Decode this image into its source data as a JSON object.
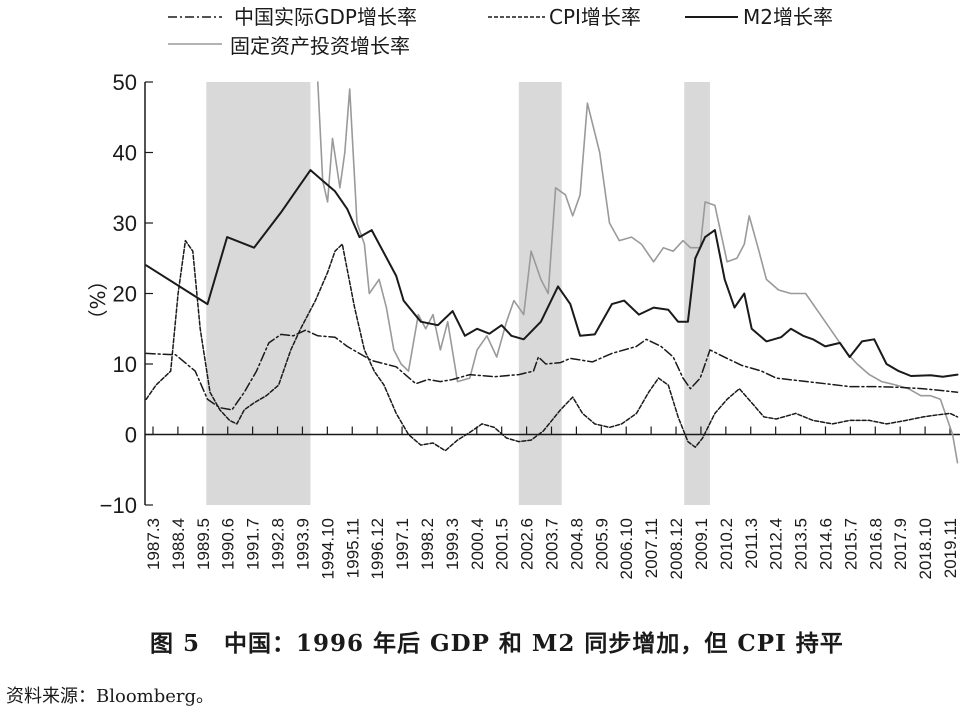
{
  "caption": "图 5　中国：1996 年后 GDP 和 M2 同步增加，但 CPI 持平",
  "source": "资料来源：Bloomberg。",
  "chart_data": {
    "type": "line",
    "title": "",
    "ylabel": "（%）",
    "ylim": [
      -10,
      50
    ],
    "yticks": [
      -10,
      0,
      10,
      20,
      30,
      40,
      50
    ],
    "xlim": [
      1987.25,
      2020.5
    ],
    "grid": false,
    "legend": "top",
    "recession_shading": [
      [
        1989.75,
        1994.0
      ],
      [
        2002.5,
        2004.25
      ],
      [
        2009.25,
        2010.3
      ]
    ],
    "xtick_labels": [
      "1987.3",
      "1988.4",
      "1989.5",
      "1990.6",
      "1991.7",
      "1992.8",
      "1993.9",
      "1994.10",
      "1995.11",
      "1996.12",
      "1997.1",
      "1998.2",
      "1999.3",
      "2000.4",
      "2001.5",
      "2002.6",
      "2003.7",
      "2004.8",
      "2005.9",
      "2006.10",
      "2007.11",
      "2008.12",
      "2009.1",
      "2010.2",
      "2011.3",
      "2012.4",
      "2013.5",
      "2014.6",
      "2015.7",
      "2016.8",
      "2017.9",
      "2018.10",
      "2019.11"
    ],
    "series": [
      {
        "name": "中国实际GDP增长率",
        "style": "dashdot",
        "color": "#1a1a1a",
        "points": [
          [
            1987.3,
            11.5
          ],
          [
            1988.5,
            11.3
          ],
          [
            1989.3,
            9
          ],
          [
            1989.8,
            5
          ],
          [
            1990.3,
            3.8
          ],
          [
            1990.8,
            3.5
          ],
          [
            1991.3,
            6
          ],
          [
            1991.8,
            9
          ],
          [
            1992.3,
            13
          ],
          [
            1992.8,
            14.2
          ],
          [
            1993.3,
            14
          ],
          [
            1993.8,
            14.8
          ],
          [
            1994.3,
            14
          ],
          [
            1995,
            13.8
          ],
          [
            1995.5,
            12.5
          ],
          [
            1996.5,
            10.5
          ],
          [
            1997.5,
            9.6
          ],
          [
            1998.3,
            7.2
          ],
          [
            1998.8,
            7.8
          ],
          [
            1999.3,
            7.5
          ],
          [
            1999.8,
            7.8
          ],
          [
            2000.5,
            8.5
          ],
          [
            2001.5,
            8.2
          ],
          [
            2002.5,
            8.5
          ],
          [
            2003.1,
            9
          ],
          [
            2003.3,
            11
          ],
          [
            2003.6,
            10
          ],
          [
            2004.2,
            10.2
          ],
          [
            2004.6,
            10.8
          ],
          [
            2005.5,
            10.3
          ],
          [
            2006.3,
            11.5
          ],
          [
            2007.3,
            12.5
          ],
          [
            2007.7,
            13.5
          ],
          [
            2008.3,
            12.5
          ],
          [
            2008.8,
            11
          ],
          [
            2009.2,
            8
          ],
          [
            2009.5,
            6.5
          ],
          [
            2009.9,
            8
          ],
          [
            2010.3,
            12
          ],
          [
            2011,
            10.8
          ],
          [
            2011.6,
            9.8
          ],
          [
            2012.4,
            9
          ],
          [
            2013,
            8
          ],
          [
            2014,
            7.6
          ],
          [
            2015,
            7.2
          ],
          [
            2016,
            6.8
          ],
          [
            2017,
            6.8
          ],
          [
            2018,
            6.7
          ],
          [
            2019,
            6.5
          ],
          [
            2020.4,
            6
          ]
        ]
      },
      {
        "name": "CPI增长率",
        "style": "dashed",
        "color": "#1a1a1a",
        "points": [
          [
            1987.3,
            5
          ],
          [
            1987.7,
            7
          ],
          [
            1988.3,
            9
          ],
          [
            1988.6,
            20
          ],
          [
            1988.9,
            27.5
          ],
          [
            1989.2,
            26
          ],
          [
            1989.5,
            15
          ],
          [
            1989.9,
            6
          ],
          [
            1990.3,
            3.5
          ],
          [
            1990.7,
            2
          ],
          [
            1991,
            1.5
          ],
          [
            1991.3,
            3.5
          ],
          [
            1991.7,
            4.5
          ],
          [
            1992.2,
            5.5
          ],
          [
            1992.7,
            7
          ],
          [
            1993.2,
            12
          ],
          [
            1993.6,
            15
          ],
          [
            1994.2,
            19
          ],
          [
            1994.7,
            23
          ],
          [
            1995,
            26
          ],
          [
            1995.3,
            27
          ],
          [
            1995.8,
            18
          ],
          [
            1996.2,
            12
          ],
          [
            1996.6,
            9
          ],
          [
            1997,
            7
          ],
          [
            1997.5,
            3
          ],
          [
            1998,
            0
          ],
          [
            1998.5,
            -1.5
          ],
          [
            1999,
            -1.2
          ],
          [
            1999.5,
            -2.3
          ],
          [
            2000,
            -0.8
          ],
          [
            2000.5,
            0.3
          ],
          [
            2001,
            1.5
          ],
          [
            2001.5,
            1
          ],
          [
            2002,
            -0.5
          ],
          [
            2002.5,
            -1
          ],
          [
            2003,
            -0.8
          ],
          [
            2003.5,
            0.5
          ],
          [
            2004.2,
            3.5
          ],
          [
            2004.7,
            5.3
          ],
          [
            2005.1,
            3
          ],
          [
            2005.6,
            1.5
          ],
          [
            2006.2,
            1
          ],
          [
            2006.7,
            1.5
          ],
          [
            2007.3,
            3
          ],
          [
            2007.8,
            6
          ],
          [
            2008.2,
            8
          ],
          [
            2008.6,
            7
          ],
          [
            2009,
            2.5
          ],
          [
            2009.4,
            -1
          ],
          [
            2009.7,
            -1.8
          ],
          [
            2010,
            -0.5
          ],
          [
            2010.5,
            3
          ],
          [
            2011,
            5
          ],
          [
            2011.5,
            6.5
          ],
          [
            2012,
            4.5
          ],
          [
            2012.5,
            2.5
          ],
          [
            2013,
            2.2
          ],
          [
            2013.8,
            3
          ],
          [
            2014.5,
            2
          ],
          [
            2015.3,
            1.5
          ],
          [
            2016,
            2
          ],
          [
            2016.8,
            2
          ],
          [
            2017.5,
            1.5
          ],
          [
            2018.3,
            2
          ],
          [
            2019,
            2.5
          ],
          [
            2019.6,
            2.8
          ],
          [
            2020.1,
            3
          ],
          [
            2020.4,
            2.5
          ]
        ]
      },
      {
        "name": "M2增长率",
        "style": "solid",
        "color": "#1a1a1a",
        "points": [
          [
            1987.3,
            24
          ],
          [
            1989.8,
            18.5
          ],
          [
            1990.6,
            28
          ],
          [
            1991.7,
            26.5
          ],
          [
            1992.8,
            31.5
          ],
          [
            1993.6,
            35.5
          ],
          [
            1994,
            37.5
          ],
          [
            1994.5,
            36
          ],
          [
            1995,
            34.5
          ],
          [
            1995.5,
            32
          ],
          [
            1996,
            28
          ],
          [
            1996.5,
            29
          ],
          [
            1997.5,
            22.5
          ],
          [
            1997.8,
            19
          ],
          [
            1998.5,
            16
          ],
          [
            1999.2,
            15.5
          ],
          [
            1999.8,
            17.5
          ],
          [
            2000.3,
            14
          ],
          [
            2000.8,
            15
          ],
          [
            2001.3,
            14.3
          ],
          [
            2001.8,
            15.5
          ],
          [
            2002.2,
            14
          ],
          [
            2002.7,
            13.5
          ],
          [
            2003.4,
            16
          ],
          [
            2004.1,
            21
          ],
          [
            2004.6,
            18.5
          ],
          [
            2005,
            14
          ],
          [
            2005.6,
            14.2
          ],
          [
            2006.3,
            18.5
          ],
          [
            2006.8,
            19
          ],
          [
            2007.4,
            17
          ],
          [
            2008,
            18
          ],
          [
            2008.6,
            17.7
          ],
          [
            2009,
            16
          ],
          [
            2009.4,
            16
          ],
          [
            2009.7,
            25
          ],
          [
            2010.1,
            28
          ],
          [
            2010.5,
            29
          ],
          [
            2010.9,
            22
          ],
          [
            2011.3,
            18
          ],
          [
            2011.7,
            20
          ],
          [
            2012,
            15
          ],
          [
            2012.6,
            13.2
          ],
          [
            2013.2,
            13.8
          ],
          [
            2013.6,
            15
          ],
          [
            2014.1,
            14
          ],
          [
            2014.5,
            13.5
          ],
          [
            2015,
            12.5
          ],
          [
            2015.6,
            13
          ],
          [
            2016,
            11
          ],
          [
            2016.5,
            13.2
          ],
          [
            2017,
            13.5
          ],
          [
            2017.5,
            10
          ],
          [
            2018,
            9
          ],
          [
            2018.5,
            8.3
          ],
          [
            2019.3,
            8.4
          ],
          [
            2019.8,
            8.2
          ],
          [
            2020.4,
            8.5
          ]
        ]
      },
      {
        "name": "固定资产投资增长率",
        "style": "solid-gray",
        "color": "#9a9a9a",
        "points": [
          [
            1994.3,
            50
          ],
          [
            1994.5,
            36
          ],
          [
            1994.7,
            33
          ],
          [
            1994.9,
            42
          ],
          [
            1995.2,
            35
          ],
          [
            1995.4,
            40
          ],
          [
            1995.6,
            49
          ],
          [
            1995.9,
            30
          ],
          [
            1996.2,
            27
          ],
          [
            1996.4,
            20
          ],
          [
            1996.8,
            22
          ],
          [
            1997.1,
            18
          ],
          [
            1997.4,
            12
          ],
          [
            1997.7,
            10
          ],
          [
            1998,
            9
          ],
          [
            1998.4,
            17
          ],
          [
            1998.7,
            15
          ],
          [
            1999,
            17
          ],
          [
            1999.3,
            12
          ],
          [
            1999.6,
            16
          ],
          [
            2000,
            7.5
          ],
          [
            2000.5,
            8
          ],
          [
            2000.8,
            12
          ],
          [
            2001.2,
            14
          ],
          [
            2001.6,
            11
          ],
          [
            2002,
            16
          ],
          [
            2002.3,
            19
          ],
          [
            2002.7,
            17
          ],
          [
            2003,
            26
          ],
          [
            2003.4,
            22
          ],
          [
            2003.7,
            20
          ],
          [
            2004,
            35
          ],
          [
            2004.4,
            34
          ],
          [
            2004.7,
            31
          ],
          [
            2005,
            34
          ],
          [
            2005.3,
            47
          ],
          [
            2005.8,
            40
          ],
          [
            2006.2,
            30
          ],
          [
            2006.6,
            27.5
          ],
          [
            2007.1,
            28
          ],
          [
            2007.5,
            27
          ],
          [
            2008,
            24.5
          ],
          [
            2008.4,
            26.5
          ],
          [
            2008.8,
            26
          ],
          [
            2009.2,
            27.5
          ],
          [
            2009.5,
            26.5
          ],
          [
            2009.9,
            26.5
          ],
          [
            2010.1,
            33
          ],
          [
            2010.5,
            32.5
          ],
          [
            2011,
            24.5
          ],
          [
            2011.4,
            25
          ],
          [
            2011.7,
            27
          ],
          [
            2011.9,
            31
          ],
          [
            2012.3,
            26
          ],
          [
            2012.6,
            22
          ],
          [
            2013.1,
            20.5
          ],
          [
            2013.6,
            20
          ],
          [
            2014.2,
            20
          ],
          [
            2014.8,
            17
          ],
          [
            2015.4,
            14
          ],
          [
            2015.9,
            11.5
          ],
          [
            2016.3,
            10
          ],
          [
            2016.8,
            8.5
          ],
          [
            2017.3,
            7.5
          ],
          [
            2017.9,
            7
          ],
          [
            2018.4,
            6.5
          ],
          [
            2018.9,
            5.5
          ],
          [
            2019.3,
            5.5
          ],
          [
            2019.7,
            5
          ],
          [
            2020,
            2
          ],
          [
            2020.2,
            0
          ],
          [
            2020.4,
            -4
          ]
        ]
      }
    ]
  }
}
